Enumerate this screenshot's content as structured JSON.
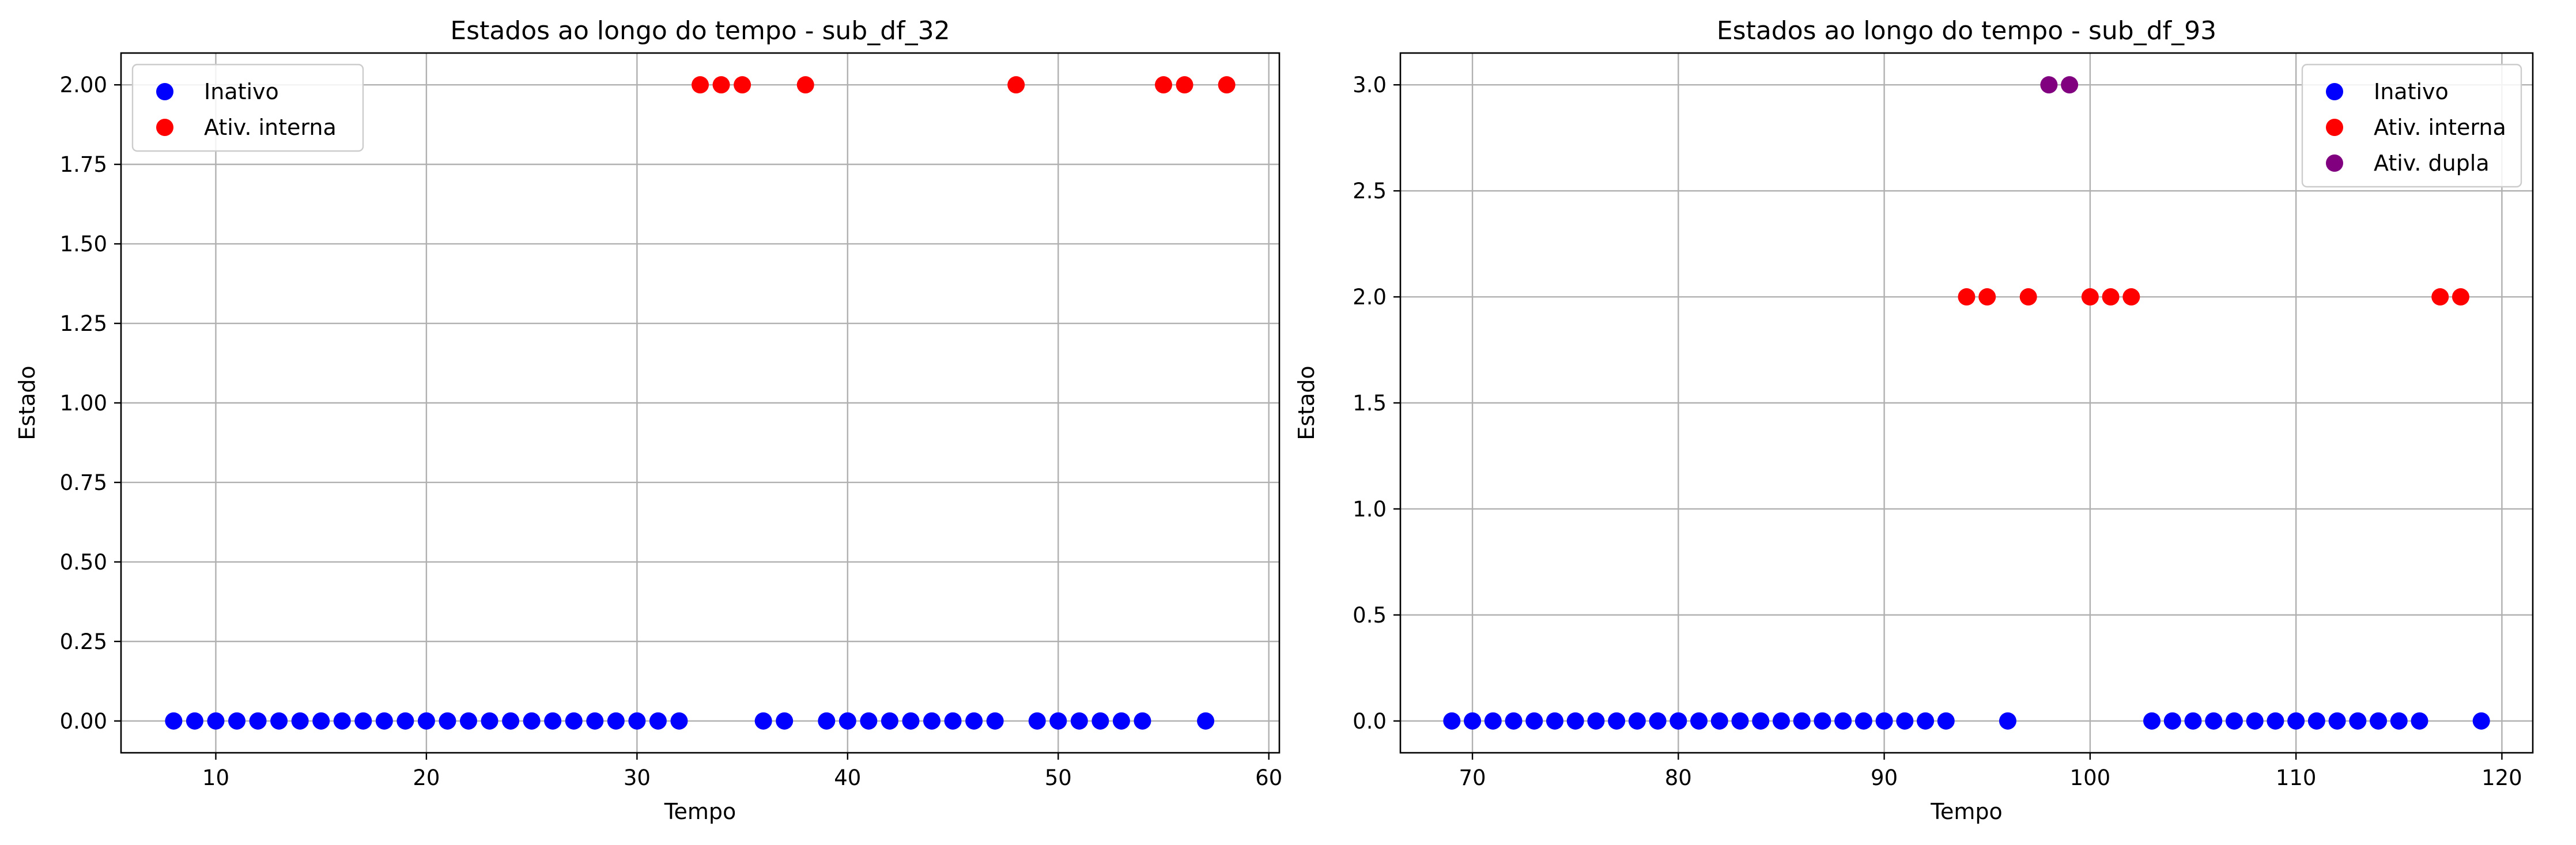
{
  "chart_data": [
    {
      "type": "scatter",
      "title": "Estados ao longo do tempo - sub_df_32",
      "xlabel": "Tempo",
      "ylabel": "Estado",
      "xlim": [
        5.5,
        60.5
      ],
      "ylim": [
        -0.1,
        2.1
      ],
      "xticks": [
        10,
        20,
        30,
        40,
        50,
        60
      ],
      "yticks": [
        0.0,
        0.25,
        0.5,
        0.75,
        1.0,
        1.25,
        1.5,
        1.75,
        2.0
      ],
      "ytick_format": 2,
      "grid": true,
      "legend_position": "upper-left",
      "series": [
        {
          "name": "Inativo",
          "color": "#0000ff",
          "x": [
            8,
            9,
            10,
            11,
            12,
            13,
            14,
            15,
            16,
            17,
            18,
            19,
            20,
            21,
            22,
            23,
            24,
            25,
            26,
            27,
            28,
            29,
            30,
            31,
            32,
            36,
            37,
            39,
            40,
            41,
            42,
            43,
            44,
            45,
            46,
            47,
            49,
            50,
            51,
            52,
            53,
            54,
            57
          ],
          "y": [
            0,
            0,
            0,
            0,
            0,
            0,
            0,
            0,
            0,
            0,
            0,
            0,
            0,
            0,
            0,
            0,
            0,
            0,
            0,
            0,
            0,
            0,
            0,
            0,
            0,
            0,
            0,
            0,
            0,
            0,
            0,
            0,
            0,
            0,
            0,
            0,
            0,
            0,
            0,
            0,
            0,
            0,
            0
          ]
        },
        {
          "name": "Ativ. interna",
          "color": "#ff0000",
          "x": [
            33,
            34,
            35,
            38,
            48,
            55,
            56,
            58
          ],
          "y": [
            2,
            2,
            2,
            2,
            2,
            2,
            2,
            2
          ]
        }
      ]
    },
    {
      "type": "scatter",
      "title": "Estados ao longo do tempo - sub_df_93",
      "xlabel": "Tempo",
      "ylabel": "Estado",
      "xlim": [
        66.5,
        121.5
      ],
      "ylim": [
        -0.15,
        3.15
      ],
      "xticks": [
        70,
        80,
        90,
        100,
        110,
        120
      ],
      "yticks": [
        0.0,
        0.5,
        1.0,
        1.5,
        2.0,
        2.5,
        3.0
      ],
      "ytick_format": 1,
      "grid": true,
      "legend_position": "upper-right",
      "series": [
        {
          "name": "Inativo",
          "color": "#0000ff",
          "x": [
            69,
            70,
            71,
            72,
            73,
            74,
            75,
            76,
            77,
            78,
            79,
            80,
            81,
            82,
            83,
            84,
            85,
            86,
            87,
            88,
            89,
            90,
            91,
            92,
            93,
            96,
            103,
            104,
            105,
            106,
            107,
            108,
            109,
            110,
            111,
            112,
            113,
            114,
            115,
            116,
            119
          ],
          "y": [
            0,
            0,
            0,
            0,
            0,
            0,
            0,
            0,
            0,
            0,
            0,
            0,
            0,
            0,
            0,
            0,
            0,
            0,
            0,
            0,
            0,
            0,
            0,
            0,
            0,
            0,
            0,
            0,
            0,
            0,
            0,
            0,
            0,
            0,
            0,
            0,
            0,
            0,
            0,
            0,
            0
          ]
        },
        {
          "name": "Ativ. interna",
          "color": "#ff0000",
          "x": [
            94,
            95,
            97,
            100,
            101,
            102,
            117,
            118
          ],
          "y": [
            2,
            2,
            2,
            2,
            2,
            2,
            2,
            2
          ]
        },
        {
          "name": "Ativ. dupla",
          "color": "#800080",
          "x": [
            98,
            99
          ],
          "y": [
            3,
            3
          ]
        }
      ]
    }
  ]
}
